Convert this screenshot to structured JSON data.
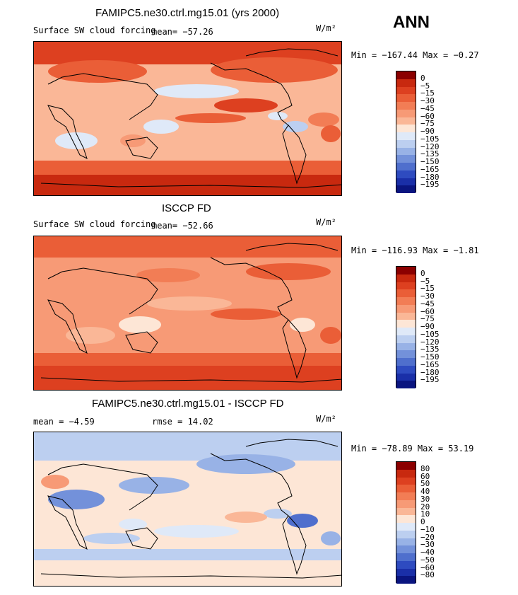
{
  "season": "ANN",
  "units": "W/m²",
  "panels": [
    {
      "title": "FAMIPC5.ne30.ctrl.mg15.01 (yrs 2000)",
      "variable": "Surface SW cloud forcing",
      "mean_text": "mean=  −57.26",
      "minmax_text": "Min = −167.44 Max =  −0.27"
    },
    {
      "title": "ISCCP FD",
      "variable": "Surface SW cloud forcing",
      "mean_text": "mean=  −52.66",
      "minmax_text": "Min = −116.93 Max =  −1.81"
    },
    {
      "title": "FAMIPC5.ne30.ctrl.mg15.01 - ISCCP FD",
      "mean_text": "mean =   −4.59",
      "rmse_text": "rmse =  14.02",
      "minmax_text": "Min = −78.89 Max =  53.19"
    }
  ],
  "colorbars": {
    "abs": {
      "labels": [
        "0",
        "−5",
        "−15",
        "−30",
        "−45",
        "−60",
        "−75",
        "−90",
        "−105",
        "−120",
        "−135",
        "−150",
        "−165",
        "−180",
        "−195"
      ],
      "colors": [
        "#8b0000",
        "#c8290f",
        "#dd4020",
        "#ea5e37",
        "#f27d55",
        "#f79a76",
        "#fab797",
        "#fde6d6",
        "#dfe9f8",
        "#bccff0",
        "#98b2e6",
        "#7391da",
        "#4f6fcd",
        "#2e4bc0",
        "#1a2fa8",
        "#0a1580"
      ]
    },
    "diff": {
      "labels": [
        "80",
        "60",
        "50",
        "40",
        "30",
        "20",
        "10",
        "0",
        "−10",
        "−20",
        "−30",
        "−40",
        "−50",
        "−60",
        "−80"
      ],
      "colors": [
        "#8b0000",
        "#c8290f",
        "#dd4020",
        "#ea5e37",
        "#f27d55",
        "#f79a76",
        "#fab797",
        "#fde6d6",
        "#dfe9f8",
        "#bccff0",
        "#98b2e6",
        "#7391da",
        "#4f6fcd",
        "#2e4bc0",
        "#1a2fa8",
        "#0a1580"
      ]
    }
  },
  "chart_data": [
    {
      "type": "heatmap",
      "title": "FAMIPC5.ne30.ctrl.mg15.01 (yrs 2000)",
      "subtitle": "Surface SW cloud forcing",
      "units": "W/m2",
      "mean": -57.26,
      "min": -167.44,
      "max": -0.27,
      "levels": [
        0,
        -5,
        -15,
        -30,
        -45,
        -60,
        -75,
        -90,
        -105,
        -120,
        -135,
        -150,
        -165,
        -180,
        -195
      ]
    },
    {
      "type": "heatmap",
      "title": "ISCCP FD",
      "subtitle": "Surface SW cloud forcing",
      "units": "W/m2",
      "mean": -52.66,
      "min": -116.93,
      "max": -1.81,
      "levels": [
        0,
        -5,
        -15,
        -30,
        -45,
        -60,
        -75,
        -90,
        -105,
        -120,
        -135,
        -150,
        -165,
        -180,
        -195
      ]
    },
    {
      "type": "heatmap",
      "title": "FAMIPC5.ne30.ctrl.mg15.01 - ISCCP FD",
      "units": "W/m2",
      "mean": -4.59,
      "rmse": 14.02,
      "min": -78.89,
      "max": 53.19,
      "levels": [
        80,
        60,
        50,
        40,
        30,
        20,
        10,
        0,
        -10,
        -20,
        -30,
        -40,
        -50,
        -60,
        -80
      ]
    }
  ]
}
